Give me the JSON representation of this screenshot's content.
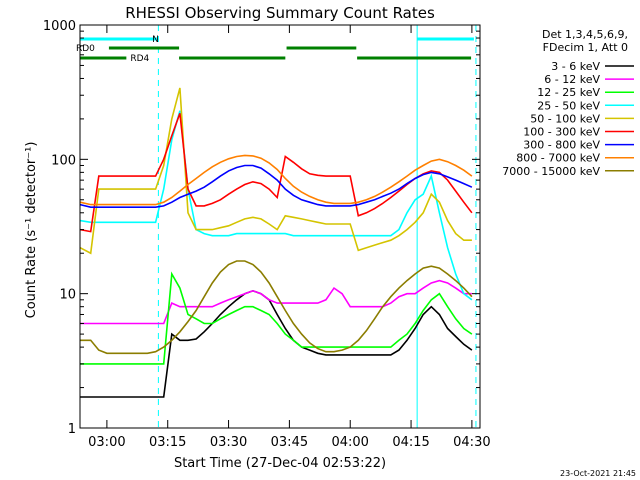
{
  "chart_data": {
    "type": "line",
    "title": "RHESSI Observing Summary Count Rates",
    "xlabel": "Start Time (27-Dec-04 02:53:22)",
    "ylabel": "Count Rate (s⁻¹ detector⁻¹)",
    "yscale": "log",
    "ylim": [
      1,
      1000
    ],
    "xlim_minutes": [
      173.37,
      272.0
    ],
    "x_ticks": [
      {
        "label": "03:00",
        "minutes": 180
      },
      {
        "label": "03:15",
        "minutes": 195
      },
      {
        "label": "03:30",
        "minutes": 210
      },
      {
        "label": "03:45",
        "minutes": 225
      },
      {
        "label": "04:00",
        "minutes": 240
      },
      {
        "label": "04:15",
        "minutes": 255
      },
      {
        "label": "04:30",
        "minutes": 270
      }
    ],
    "y_ticks": [
      {
        "label": "1",
        "value": 1
      },
      {
        "label": "10",
        "value": 10
      },
      {
        "label": "100",
        "value": 100
      },
      {
        "label": "1000",
        "value": 1000
      }
    ],
    "legend_header": [
      "Det 1,3,4,5,6,9,",
      "FDecim 1, Att 0"
    ],
    "legend_position": "right",
    "series": [
      {
        "name": "3 - 6 keV",
        "color": "#000000",
        "x": [
          173.4,
          176,
          178,
          180,
          182,
          184,
          186,
          188,
          190,
          192,
          194,
          196,
          198,
          200,
          202,
          204,
          206,
          208,
          210,
          212,
          214,
          216,
          218,
          220,
          222,
          224,
          226,
          228,
          230,
          232,
          234,
          236,
          238,
          240,
          242,
          244,
          246,
          248,
          250,
          252,
          254,
          256,
          258,
          260,
          262,
          264,
          266,
          268,
          270
        ],
        "y": [
          1.7,
          1.7,
          1.7,
          1.7,
          1.7,
          1.7,
          1.7,
          1.7,
          1.7,
          1.7,
          1.7,
          5,
          4.5,
          4.5,
          4.6,
          5.2,
          6,
          7,
          8,
          9,
          10,
          10.5,
          10,
          9,
          7,
          5.5,
          4.5,
          4,
          3.8,
          3.6,
          3.5,
          3.5,
          3.5,
          3.5,
          3.5,
          3.5,
          3.5,
          3.5,
          3.5,
          3.8,
          4.5,
          5.5,
          7,
          8,
          7,
          5.5,
          4.8,
          4.2,
          3.8
        ]
      },
      {
        "name": "6 - 12 keV",
        "color": "#ff00ff",
        "x": [
          173.4,
          176,
          178,
          180,
          182,
          184,
          186,
          188,
          190,
          192,
          194,
          196,
          198,
          200,
          202,
          204,
          206,
          208,
          210,
          212,
          214,
          216,
          218,
          220,
          222,
          224,
          226,
          228,
          230,
          232,
          234,
          236,
          238,
          240,
          242,
          244,
          246,
          248,
          250,
          252,
          254,
          256,
          258,
          260,
          262,
          264,
          266,
          268,
          270
        ],
        "y": [
          6,
          6,
          6,
          6,
          6,
          6,
          6,
          6,
          6,
          6,
          6,
          8.5,
          8,
          8,
          8,
          8,
          8,
          8.5,
          9,
          9.5,
          10,
          10.5,
          10,
          9,
          8.5,
          8.5,
          8.5,
          8.5,
          8.5,
          8.5,
          9,
          11,
          10,
          8,
          8,
          8,
          8,
          8,
          8.5,
          9.5,
          10,
          10,
          11,
          12,
          12.5,
          12,
          11,
          10,
          10
        ]
      },
      {
        "name": "12 - 25 keV",
        "color": "#00ff00",
        "x": [
          173.4,
          176,
          178,
          180,
          182,
          184,
          186,
          188,
          190,
          192,
          194,
          196,
          198,
          200,
          202,
          204,
          206,
          208,
          210,
          212,
          214,
          216,
          218,
          220,
          222,
          224,
          226,
          228,
          230,
          232,
          234,
          236,
          238,
          240,
          242,
          244,
          246,
          248,
          250,
          252,
          254,
          256,
          258,
          260,
          262,
          264,
          266,
          268,
          270
        ],
        "y": [
          3,
          3,
          3,
          3,
          3,
          3,
          3,
          3,
          3,
          3,
          3,
          14,
          11,
          7,
          6.5,
          6,
          6,
          6.5,
          7,
          7.5,
          8,
          8,
          7.5,
          7,
          6,
          5,
          4.5,
          4,
          4,
          4,
          4,
          4,
          4,
          4,
          4,
          4,
          4,
          4,
          4,
          4.5,
          5,
          6,
          7.5,
          9,
          10,
          8,
          6.5,
          5.5,
          5
        ]
      },
      {
        "name": "25 - 50 keV",
        "color": "#00ffff",
        "x": [
          173.4,
          176,
          178,
          180,
          182,
          184,
          186,
          188,
          190,
          192,
          194,
          196,
          198,
          200,
          202,
          204,
          206,
          208,
          210,
          212,
          214,
          216,
          218,
          220,
          222,
          224,
          226,
          228,
          230,
          232,
          234,
          236,
          238,
          240,
          242,
          244,
          246,
          248,
          250,
          252,
          254,
          256,
          258,
          260,
          262,
          264,
          266,
          268,
          270
        ],
        "y": [
          35,
          34,
          34,
          34,
          34,
          34,
          34,
          34,
          34,
          34,
          60,
          140,
          230,
          60,
          30,
          28,
          27,
          27,
          27,
          28,
          28,
          28,
          28,
          28,
          28,
          28,
          27,
          27,
          27,
          27,
          27,
          27,
          27,
          27,
          27,
          27,
          27,
          27,
          27,
          30,
          40,
          50,
          55,
          75,
          40,
          22,
          14,
          10,
          9
        ]
      },
      {
        "name": "50 - 100 keV",
        "color": "#d4c400",
        "x": [
          173.4,
          176,
          178,
          180,
          182,
          184,
          186,
          188,
          190,
          192,
          194,
          196,
          198,
          200,
          202,
          204,
          206,
          208,
          210,
          212,
          214,
          216,
          218,
          220,
          222,
          224,
          226,
          228,
          230,
          232,
          234,
          236,
          238,
          240,
          242,
          244,
          246,
          248,
          250,
          252,
          254,
          256,
          258,
          260,
          262,
          264,
          266,
          268,
          270
        ],
        "y": [
          22,
          20,
          60,
          60,
          60,
          60,
          60,
          60,
          60,
          60,
          90,
          200,
          340,
          40,
          30,
          30,
          30,
          31,
          32,
          34,
          36,
          37,
          36,
          33,
          30,
          38,
          37,
          36,
          35,
          34,
          33,
          33,
          33,
          33,
          21,
          22,
          23,
          24,
          25,
          27,
          30,
          34,
          40,
          55,
          48,
          35,
          28,
          25,
          25
        ]
      },
      {
        "name": "100 - 300 keV",
        "color": "#ff0000",
        "x": [
          173.4,
          176,
          178,
          180,
          182,
          184,
          186,
          188,
          190,
          192,
          194,
          196,
          198,
          200,
          202,
          204,
          206,
          208,
          210,
          212,
          214,
          216,
          218,
          220,
          222,
          224,
          226,
          228,
          230,
          232,
          234,
          236,
          238,
          240,
          242,
          244,
          246,
          248,
          250,
          252,
          254,
          256,
          258,
          260,
          262,
          264,
          266,
          268,
          270
        ],
        "y": [
          30,
          29,
          75,
          75,
          75,
          75,
          75,
          75,
          75,
          75,
          100,
          150,
          220,
          60,
          45,
          45,
          47,
          50,
          55,
          60,
          65,
          68,
          66,
          60,
          52,
          105,
          95,
          85,
          78,
          76,
          75,
          75,
          75,
          75,
          38,
          40,
          43,
          47,
          52,
          58,
          65,
          72,
          78,
          82,
          80,
          70,
          58,
          48,
          40
        ]
      },
      {
        "name": "300 - 800 keV",
        "color": "#0000ff",
        "x": [
          173.4,
          176,
          178,
          180,
          182,
          184,
          186,
          188,
          190,
          192,
          194,
          196,
          198,
          200,
          202,
          204,
          206,
          208,
          210,
          212,
          214,
          216,
          218,
          220,
          222,
          224,
          226,
          228,
          230,
          232,
          234,
          236,
          238,
          240,
          242,
          244,
          246,
          248,
          250,
          252,
          254,
          256,
          258,
          260,
          262,
          264,
          266,
          268,
          270
        ],
        "y": [
          46,
          44,
          44,
          44,
          44,
          44,
          44,
          44,
          44,
          44,
          45,
          48,
          52,
          55,
          58,
          62,
          68,
          75,
          82,
          87,
          90,
          90,
          86,
          78,
          70,
          60,
          54,
          50,
          48,
          46,
          45,
          45,
          45,
          45,
          46,
          48,
          50,
          53,
          56,
          60,
          66,
          72,
          77,
          80,
          78,
          74,
          70,
          66,
          62
        ]
      },
      {
        "name": "800 - 7000 keV",
        "color": "#ff8000",
        "x": [
          173.4,
          176,
          178,
          180,
          182,
          184,
          186,
          188,
          190,
          192,
          194,
          196,
          198,
          200,
          202,
          204,
          206,
          208,
          210,
          212,
          214,
          216,
          218,
          220,
          222,
          224,
          226,
          228,
          230,
          232,
          234,
          236,
          238,
          240,
          242,
          244,
          246,
          248,
          250,
          252,
          254,
          256,
          258,
          260,
          262,
          264,
          266,
          268,
          270
        ],
        "y": [
          48,
          46,
          46,
          46,
          46,
          46,
          46,
          46,
          46,
          46,
          48,
          52,
          58,
          65,
          72,
          80,
          88,
          95,
          101,
          105,
          107,
          106,
          102,
          94,
          84,
          72,
          63,
          57,
          53,
          50,
          48,
          47,
          47,
          47,
          48,
          50,
          53,
          57,
          62,
          68,
          75,
          83,
          90,
          97,
          100,
          96,
          90,
          83,
          75
        ]
      },
      {
        "name": "7000 - 15000 keV",
        "color": "#8b7d00",
        "x": [
          173.4,
          176,
          178,
          180,
          182,
          184,
          186,
          188,
          190,
          192,
          194,
          196,
          198,
          200,
          202,
          204,
          206,
          208,
          210,
          212,
          214,
          216,
          218,
          220,
          222,
          224,
          226,
          228,
          230,
          232,
          234,
          236,
          238,
          240,
          242,
          244,
          246,
          248,
          250,
          252,
          254,
          256,
          258,
          260,
          262,
          264,
          266,
          268,
          270
        ],
        "y": [
          4.5,
          4.5,
          3.8,
          3.6,
          3.6,
          3.6,
          3.6,
          3.6,
          3.6,
          3.7,
          4,
          4.5,
          5.2,
          6.2,
          7.5,
          9.5,
          12,
          14.5,
          16.5,
          17.5,
          17.5,
          16.5,
          14.5,
          12,
          9.5,
          7.5,
          6,
          5,
          4.3,
          3.9,
          3.7,
          3.7,
          3.8,
          4,
          4.5,
          5.3,
          6.5,
          8,
          9.5,
          11,
          12.5,
          14,
          15.5,
          16,
          15.5,
          14,
          12.5,
          11,
          9.5
        ]
      }
    ],
    "status_bars": [
      {
        "label": "N",
        "color": "#00ffff",
        "segments": [
          [
            173.4,
            192.4
          ],
          [
            256.5,
            270.5
          ]
        ]
      },
      {
        "label": "RD0",
        "color": "#008000",
        "segments": [
          [
            180.5,
            197.8
          ],
          [
            224.3,
            241.5
          ]
        ]
      },
      {
        "label": "RD4",
        "color": "#008000",
        "segments": [
          [
            173.4,
            184.8
          ],
          [
            197.8,
            224.0
          ],
          [
            241.7,
            269.8
          ]
        ]
      }
    ],
    "vertical_markers": [
      {
        "minutes": 192.7,
        "style": "dashed",
        "color": "#00ffff"
      },
      {
        "minutes": 256.5,
        "style": "solid",
        "color": "#00ffff"
      },
      {
        "minutes": 271.0,
        "style": "dashed",
        "color": "#00ffff"
      }
    ],
    "grid": false
  },
  "footer": {
    "timestamp": "23-Oct-2021 21:45"
  }
}
